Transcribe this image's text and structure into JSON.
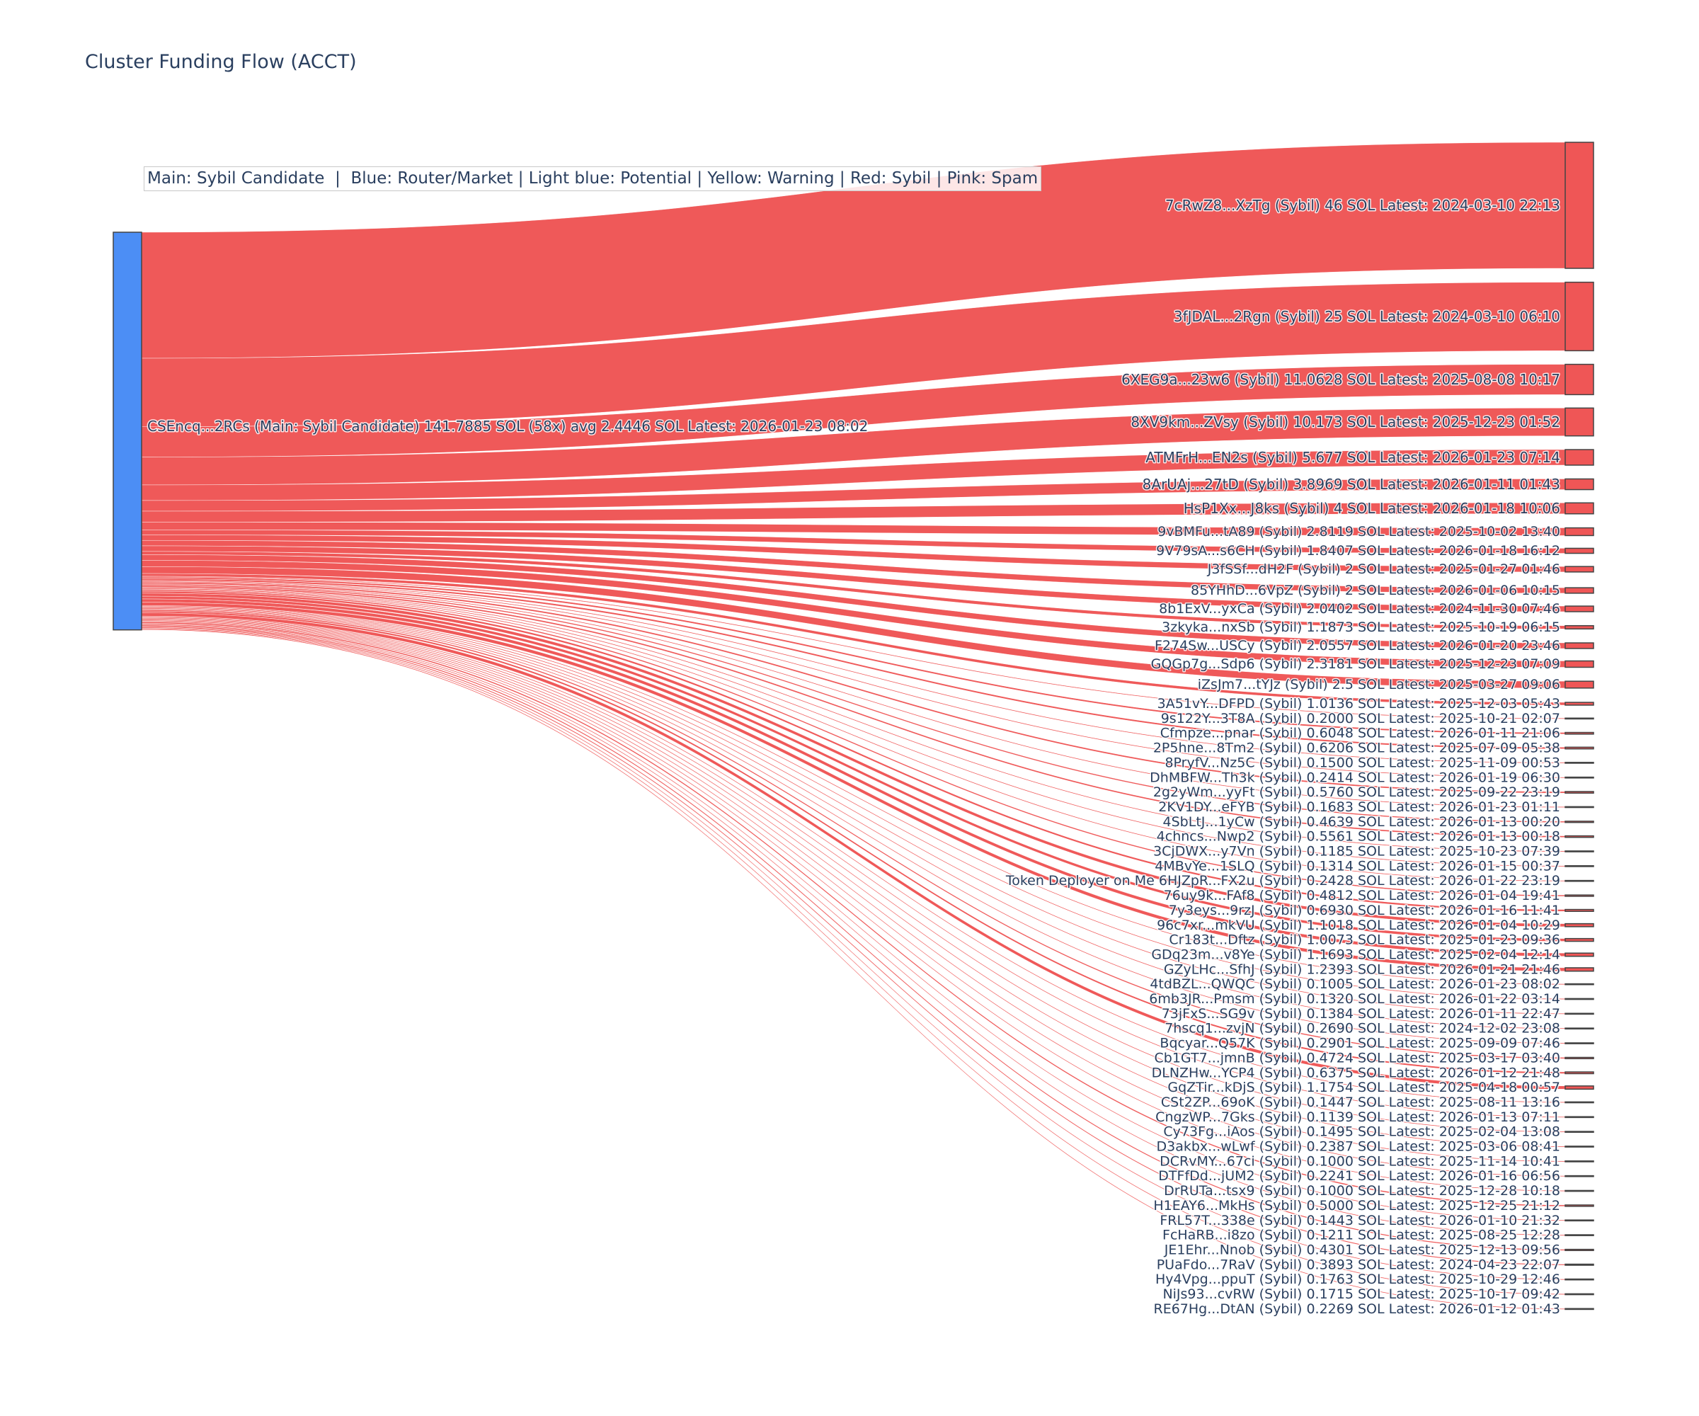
{
  "chart_data": {
    "type": "sankey",
    "title": "Cluster Funding Flow (ACCT)",
    "annotation": "Main: Sybil Candidate  |  Blue: Router/Market | Light blue: Potential | Yellow: Warning | Red: Sybil | Pink: Spam",
    "colors": {
      "source_node": "#4C8EF5",
      "sybil": "#EF5656",
      "node_border": "#444444",
      "text": "#2a3f5f"
    },
    "source": {
      "label": "CSEncq...2RCs (Main: Sybil Candidate) 141.7885 SOL (58x) avg 2.4446 SOL Latest: 2026-01-23 08:02",
      "value": 141.7885,
      "category": "Main: Sybil Candidate"
    },
    "targets": [
      {
        "label": "7cRwZ8...XzTg (Sybil) 46 SOL Latest: 2024-03-10 22:13",
        "value": 46
      },
      {
        "label": "3fJDAL...2Rgn (Sybil) 25 SOL Latest: 2024-03-10 06:10",
        "value": 25
      },
      {
        "label": "6XEG9a...23w6 (Sybil) 11.0628 SOL Latest: 2025-08-08 10:17",
        "value": 11.0628
      },
      {
        "label": "8XV9km...ZVsy (Sybil) 10.173 SOL Latest: 2025-12-23 01:52",
        "value": 10.173
      },
      {
        "label": "ATMFrH...EN2s (Sybil) 5.677 SOL Latest: 2026-01-23 07:14",
        "value": 5.677
      },
      {
        "label": "8ArUAj...27tD (Sybil) 3.8969 SOL Latest: 2026-01-11 01:43",
        "value": 3.8969
      },
      {
        "label": "HsP1Xx...J8ks (Sybil) 4 SOL Latest: 2026-01-18 10:06",
        "value": 4
      },
      {
        "label": "9vBMFu...tA89 (Sybil) 2.8119 SOL Latest: 2025-10-02 13:40",
        "value": 2.8119
      },
      {
        "label": "9V79sA...s6CH (Sybil) 1.8407 SOL Latest: 2026-01-18 16:12",
        "value": 1.8407
      },
      {
        "label": "J3fSSf...dH2F (Sybil) 2 SOL Latest: 2025-01-27 01:46",
        "value": 2
      },
      {
        "label": "85YHhD...6VpZ (Sybil) 2 SOL Latest: 2026-01-06 10:15",
        "value": 2
      },
      {
        "label": "8b1ExV...yxCa (Sybil) 2.0402 SOL Latest: 2024-11-30 07:46",
        "value": 2.0402
      },
      {
        "label": "3zkyka...nxSb (Sybil) 1.1873 SOL Latest: 2025-10-19 06:15",
        "value": 1.1873
      },
      {
        "label": "F274Sw...USCy (Sybil) 2.0557 SOL Latest: 2026-01-20 23:46",
        "value": 2.0557
      },
      {
        "label": "GQGp7g...Sdp6 (Sybil) 2.3181 SOL Latest: 2025-12-23 07:09",
        "value": 2.3181
      },
      {
        "label": "iZsJm7...tYJz (Sybil) 2.5 SOL Latest: 2025-03-27 09:06",
        "value": 2.5
      },
      {
        "label": "3A51vY...DFPD (Sybil) 1.0136 SOL Latest: 2025-12-03 05:43",
        "value": 1.0136
      },
      {
        "label": "9s122Y...3T8A (Sybil) 0.2000 SOL Latest: 2025-10-21 02:07",
        "value": 0.2
      },
      {
        "label": "Cfmpze...pnar (Sybil) 0.6048 SOL Latest: 2026-01-11 21:06",
        "value": 0.6048
      },
      {
        "label": "2P5hne...8Tm2 (Sybil) 0.6206 SOL Latest: 2025-07-09 05:38",
        "value": 0.6206
      },
      {
        "label": "8PryfV...Nz5C (Sybil) 0.1500 SOL Latest: 2025-11-09 00:53",
        "value": 0.15
      },
      {
        "label": "DhMBFW...Th3k (Sybil) 0.2414 SOL Latest: 2026-01-19 06:30",
        "value": 0.2414
      },
      {
        "label": "2g2yWm...yyFt (Sybil) 0.5760 SOL Latest: 2025-09-22 23:19",
        "value": 0.576
      },
      {
        "label": "2KV1DY...eFYB (Sybil) 0.1683 SOL Latest: 2026-01-23 01:11",
        "value": 0.1683
      },
      {
        "label": "4SbLtJ...1yCw (Sybil) 0.4639 SOL Latest: 2026-01-13 00:20",
        "value": 0.4639
      },
      {
        "label": "4chncs...Nwp2 (Sybil) 0.5561 SOL Latest: 2026-01-13 00:18",
        "value": 0.5561
      },
      {
        "label": "3CjDWX...y7Vn (Sybil) 0.1185 SOL Latest: 2025-10-23 07:39",
        "value": 0.1185
      },
      {
        "label": "4MBvYe...1SLQ (Sybil) 0.1314 SOL Latest: 2026-01-15 00:37",
        "value": 0.1314
      },
      {
        "label": "Token Deployer on Me 6HJZpR...FX2u (Sybil) 0.2428 SOL Latest: 2026-01-22 23:19",
        "value": 0.2428
      },
      {
        "label": "76uy9k...FAf8 (Sybil) 0.4812 SOL Latest: 2026-01-04 19:41",
        "value": 0.4812
      },
      {
        "label": "7y3eys...9rzJ (Sybil) 0.6930 SOL Latest: 2026-01-16 11:41",
        "value": 0.693
      },
      {
        "label": "96c7xr...mkVU (Sybil) 1.1018 SOL Latest: 2026-01-04 10:29",
        "value": 1.1018
      },
      {
        "label": "Cr183t...Dftz (Sybil) 1.0073 SOL Latest: 2025-01-23 09:36",
        "value": 1.0073
      },
      {
        "label": "GDq23m...v8Ye (Sybil) 1.1693 SOL Latest: 2025-02-04 12:14",
        "value": 1.1693
      },
      {
        "label": "GZyLHc...SfhJ (Sybil) 1.2393 SOL Latest: 2026-01-21 21:46",
        "value": 1.2393
      },
      {
        "label": "4tdBZL...QWQC (Sybil) 0.1005 SOL Latest: 2026-01-23 08:02",
        "value": 0.1005
      },
      {
        "label": "6mb3JR...Pmsm (Sybil) 0.1320 SOL Latest: 2026-01-22 03:14",
        "value": 0.132
      },
      {
        "label": "73jFxS...SG9v (Sybil) 0.1384 SOL Latest: 2026-01-11 22:47",
        "value": 0.1384
      },
      {
        "label": "7hscq1...zvjN (Sybil) 0.2690 SOL Latest: 2024-12-02 23:08",
        "value": 0.269
      },
      {
        "label": "Bqcyar...Q57K (Sybil) 0.2901 SOL Latest: 2025-09-09 07:46",
        "value": 0.2901
      },
      {
        "label": "Cb1GT7...jmnB (Sybil) 0.4724 SOL Latest: 2025-03-17 03:40",
        "value": 0.4724
      },
      {
        "label": "DLNZHw...YCP4 (Sybil) 0.6375 SOL Latest: 2026-01-12 21:48",
        "value": 0.6375
      },
      {
        "label": "GqZTir...kDjS (Sybil) 1.1754 SOL Latest: 2025-04-18 00:57",
        "value": 1.1754
      },
      {
        "label": "CSt2ZP...69oK (Sybil) 0.1447 SOL Latest: 2025-08-11 13:16",
        "value": 0.1447
      },
      {
        "label": "CngzWP...7Gks (Sybil) 0.1139 SOL Latest: 2026-01-13 07:11",
        "value": 0.1139
      },
      {
        "label": "Cy73Fg...iAos (Sybil) 0.1495 SOL Latest: 2025-02-04 13:08",
        "value": 0.1495
      },
      {
        "label": "D3akbx...wLwf (Sybil) 0.2387 SOL Latest: 2025-03-06 08:41",
        "value": 0.2387
      },
      {
        "label": "DCRvMY...67ci (Sybil) 0.1000 SOL Latest: 2025-11-14 10:41",
        "value": 0.1
      },
      {
        "label": "DTFfDd...jUM2 (Sybil) 0.2241 SOL Latest: 2026-01-16 06:56",
        "value": 0.2241
      },
      {
        "label": "DrRUTa...tsx9 (Sybil) 0.1000 SOL Latest: 2025-12-28 10:18",
        "value": 0.1
      },
      {
        "label": "H1EAY6...MkHs (Sybil) 0.5000 SOL Latest: 2025-12-25 21:12",
        "value": 0.5
      },
      {
        "label": "FRL57T...338e (Sybil) 0.1443 SOL Latest: 2026-01-10 21:32",
        "value": 0.1443
      },
      {
        "label": "FcHaRB...i8zo (Sybil) 0.1211 SOL Latest: 2025-08-25 12:28",
        "value": 0.1211
      },
      {
        "label": "JE1Ehr...Nnob (Sybil) 0.4301 SOL Latest: 2025-12-13 09:56",
        "value": 0.4301
      },
      {
        "label": "PUaFdo...7RaV (Sybil) 0.3893 SOL Latest: 2024-04-23 22:07",
        "value": 0.3893
      },
      {
        "label": "Hy4Vpg...ppuT (Sybil) 0.1763 SOL Latest: 2025-10-29 12:46",
        "value": 0.1763
      },
      {
        "label": "NiJs93...cvRW (Sybil) 0.1715 SOL Latest: 2025-10-17 09:42",
        "value": 0.1715
      },
      {
        "label": "RE67Hg...DtAN (Sybil) 0.2269 SOL Latest: 2026-01-12 01:43",
        "value": 0.2269
      }
    ]
  }
}
